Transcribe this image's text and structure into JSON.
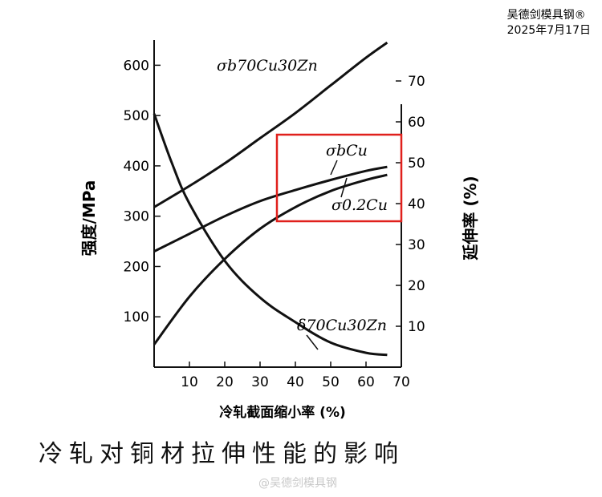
{
  "watermark": {
    "line1": "吴德剑模具钢®",
    "line2": "2025年7月17日",
    "bottom": "@吴德剑模具钢"
  },
  "caption": "冷轧对铜材拉伸性能的影响",
  "chart_data": {
    "type": "line",
    "xlabel": "冷轧截面缩小率 (%)",
    "ylabel_left": "强度/MPa",
    "ylabel_right": "延伸率 (%)",
    "x_ticks": [
      10,
      20,
      30,
      40,
      50,
      60,
      70
    ],
    "y_left_ticks": [
      100,
      200,
      300,
      400,
      500,
      600
    ],
    "y_right_ticks": [
      10,
      20,
      30,
      40,
      50,
      60,
      70
    ],
    "xlim": [
      0,
      70
    ],
    "ylim_left": [
      0,
      650
    ],
    "ylim_right": [
      0,
      80
    ],
    "highlight_color": "#e0201c",
    "highlight_region": {
      "x": [
        34,
        70
      ],
      "y_left": [
        285,
        440
      ]
    },
    "series": [
      {
        "name": "σb70Cu30Zn",
        "axis": "left",
        "x": [
          0,
          10,
          20,
          30,
          40,
          50,
          60,
          66
        ],
        "y": [
          318,
          360,
          405,
          455,
          505,
          560,
          615,
          645
        ]
      },
      {
        "name": "σbCu",
        "axis": "left",
        "x": [
          0,
          10,
          20,
          30,
          40,
          50,
          60,
          66
        ],
        "y": [
          230,
          265,
          300,
          330,
          352,
          372,
          390,
          398
        ]
      },
      {
        "name": "σ0.2Cu",
        "axis": "left",
        "x": [
          0,
          10,
          20,
          30,
          40,
          50,
          60,
          66
        ],
        "y": [
          45,
          140,
          215,
          275,
          318,
          350,
          372,
          382
        ]
      },
      {
        "name": "δ70Cu30Zn",
        "axis": "right",
        "x": [
          0,
          5,
          10,
          20,
          30,
          40,
          50,
          60,
          66
        ],
        "y": [
          62,
          50,
          40,
          26,
          17,
          11,
          6,
          3.5,
          3
        ]
      }
    ],
    "labels": [
      {
        "text": "σb70Cu30Zn",
        "series": "σb70Cu30Zn"
      },
      {
        "text": "σbCu",
        "series": "σbCu"
      },
      {
        "text": "σ0.2Cu",
        "series": "σ0.2Cu"
      },
      {
        "text": "δ70Cu30Zn",
        "series": "δ70Cu30Zn"
      }
    ]
  }
}
